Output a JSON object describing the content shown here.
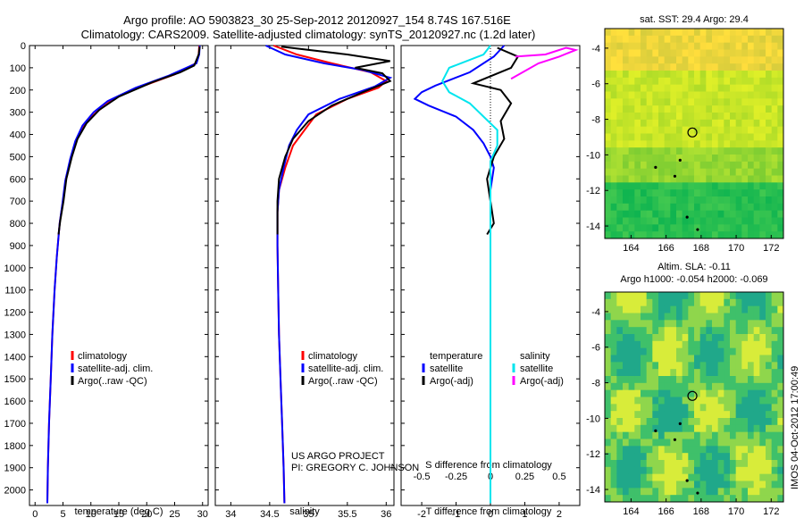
{
  "header": {
    "line1": "Argo profile: AO 5903823_30 25-Sep-2012 20120927_154 8.74S 167.516E",
    "line2": "Climatology: CARS2009. Satellite-adjusted climatology: synTS_20120927.nc (1.2d later)"
  },
  "credit": {
    "line1": "US ARGO PROJECT",
    "line2": "PI: GREGORY C. JOHNSON"
  },
  "side_stamp": "IMOS 04-Oct-2012 17:00:49",
  "colors": {
    "climatology": "#ff0000",
    "satellite": "#0000ff",
    "argo": "#000000",
    "salinity_satellite": "#00e5ee",
    "salinity_argo": "#ff00ff"
  },
  "chart_data": [
    {
      "type": "line",
      "panel": "temperature",
      "xlabel": "temperature (deg C)",
      "ylabel": "",
      "xlim": [
        -1,
        31
      ],
      "ylim": [
        2070,
        0
      ],
      "xticks": [
        0,
        5,
        10,
        15,
        20,
        25,
        30
      ],
      "yticks": [
        0,
        100,
        200,
        300,
        400,
        500,
        600,
        700,
        800,
        900,
        1000,
        1100,
        1200,
        1300,
        1400,
        1500,
        1600,
        1700,
        1800,
        1900,
        2000
      ],
      "legend": [
        "climatology",
        "satellite-adj. clim.",
        "Argo(..raw -QC)"
      ],
      "legend_position": "lower-center",
      "series": [
        {
          "name": "climatology",
          "color": "#ff0000",
          "points": [
            [
              29.4,
              0
            ],
            [
              29.3,
              40
            ],
            [
              28.8,
              80
            ],
            [
              25,
              130
            ],
            [
              19,
              185
            ],
            [
              14,
              240
            ],
            [
              11,
              300
            ],
            [
              9,
              350
            ],
            [
              7.5,
              420
            ],
            [
              6.5,
              500
            ],
            [
              5.5,
              600
            ],
            [
              5,
              700
            ],
            [
              4.4,
              800
            ],
            [
              3.9,
              950
            ],
            [
              3.5,
              1100
            ],
            [
              3.1,
              1300
            ],
            [
              2.8,
              1500
            ],
            [
              2.5,
              1700
            ],
            [
              2.3,
              1900
            ],
            [
              2.2,
              2060
            ]
          ]
        },
        {
          "name": "satellite-adj. clim.",
          "color": "#0000ff",
          "points": [
            [
              29.5,
              0
            ],
            [
              29.4,
              40
            ],
            [
              28.9,
              80
            ],
            [
              24,
              135
            ],
            [
              18,
              190
            ],
            [
              13,
              250
            ],
            [
              10.5,
              300
            ],
            [
              8.5,
              360
            ],
            [
              7.2,
              430
            ],
            [
              6.3,
              510
            ],
            [
              5.4,
              610
            ],
            [
              4.9,
              710
            ],
            [
              4.4,
              800
            ],
            [
              3.9,
              950
            ],
            [
              3.5,
              1100
            ],
            [
              3.1,
              1300
            ],
            [
              2.8,
              1500
            ],
            [
              2.5,
              1700
            ],
            [
              2.3,
              1900
            ],
            [
              2.2,
              2060
            ]
          ]
        },
        {
          "name": "Argo(..raw -QC)",
          "color": "#000000",
          "points": [
            [
              29.5,
              5
            ],
            [
              29.3,
              40
            ],
            [
              28.5,
              90
            ],
            [
              26,
              120
            ],
            [
              21,
              165
            ],
            [
              15,
              230
            ],
            [
              11.5,
              290
            ],
            [
              9.2,
              350
            ],
            [
              7.6,
              420
            ],
            [
              6.6,
              500
            ],
            [
              5.6,
              600
            ],
            [
              5.1,
              700
            ],
            [
              4.5,
              790
            ],
            [
              4.2,
              850
            ]
          ]
        }
      ]
    },
    {
      "type": "line",
      "panel": "salinity",
      "xlabel": "salinity",
      "ylabel": "",
      "xlim": [
        33.8,
        36.1
      ],
      "ylim": [
        2070,
        0
      ],
      "xticks": [
        34,
        34.5,
        35,
        35.5,
        36
      ],
      "legend": [
        "climatology",
        "satellite-adj. clim.",
        "Argo(..raw -QC)"
      ],
      "legend_position": "lower-center",
      "series": [
        {
          "name": "climatology",
          "color": "#ff0000",
          "points": [
            [
              34.55,
              0
            ],
            [
              34.85,
              40
            ],
            [
              35.3,
              80
            ],
            [
              35.8,
              120
            ],
            [
              36.0,
              160
            ],
            [
              35.9,
              190
            ],
            [
              35.5,
              240
            ],
            [
              35.1,
              310
            ],
            [
              34.95,
              380
            ],
            [
              34.8,
              450
            ],
            [
              34.7,
              550
            ],
            [
              34.62,
              650
            ],
            [
              34.6,
              750
            ],
            [
              34.6,
              900
            ],
            [
              34.61,
              1100
            ],
            [
              34.62,
              1300
            ],
            [
              34.64,
              1500
            ],
            [
              34.66,
              1700
            ],
            [
              34.68,
              1900
            ],
            [
              34.69,
              2060
            ]
          ]
        },
        {
          "name": "satellite-adj. clim.",
          "color": "#0000ff",
          "points": [
            [
              34.45,
              0
            ],
            [
              34.7,
              40
            ],
            [
              35.2,
              80
            ],
            [
              35.7,
              110
            ],
            [
              36.05,
              145
            ],
            [
              35.85,
              185
            ],
            [
              35.4,
              240
            ],
            [
              35.0,
              310
            ],
            [
              34.85,
              380
            ],
            [
              34.75,
              450
            ],
            [
              34.68,
              550
            ],
            [
              34.62,
              650
            ],
            [
              34.6,
              750
            ],
            [
              34.6,
              900
            ],
            [
              34.61,
              1100
            ],
            [
              34.62,
              1300
            ],
            [
              34.64,
              1500
            ],
            [
              34.66,
              1700
            ],
            [
              34.68,
              1900
            ],
            [
              34.69,
              2060
            ]
          ]
        },
        {
          "name": "Argo(..raw -QC)",
          "color": "#000000",
          "points": [
            [
              34.65,
              5
            ],
            [
              35.5,
              40
            ],
            [
              36.05,
              70
            ],
            [
              35.6,
              100
            ],
            [
              35.95,
              125
            ],
            [
              36.05,
              160
            ],
            [
              35.7,
              210
            ],
            [
              35.3,
              270
            ],
            [
              35.0,
              340
            ],
            [
              34.8,
              420
            ],
            [
              34.7,
              500
            ],
            [
              34.62,
              600
            ],
            [
              34.6,
              700
            ],
            [
              34.6,
              800
            ],
            [
              34.6,
              850
            ]
          ]
        }
      ]
    },
    {
      "type": "line",
      "panel": "difference",
      "xlabel": "T difference from climatology",
      "x2label": "S difference from climatology",
      "xlim": [
        -2.6,
        2.6
      ],
      "x2lim": [
        -0.65,
        0.65
      ],
      "ylim": [
        2070,
        0
      ],
      "xticks": [
        -2,
        -1,
        0,
        1,
        2
      ],
      "x2ticks": [
        "-0.5",
        "-0.25",
        "0",
        "0.25",
        "0.5"
      ],
      "legend_titles": [
        "temperature",
        "salinity"
      ],
      "legend": [
        "satellite",
        "Argo(-adj)",
        "satellite",
        "Argo(-adj)"
      ],
      "series": [
        {
          "name": "temperature satellite",
          "color": "#0000ff",
          "points": [
            [
              0.4,
              0
            ],
            [
              0.1,
              50
            ],
            [
              -0.6,
              120
            ],
            [
              -1.6,
              180
            ],
            [
              -2.0,
              210
            ],
            [
              -2.2,
              240
            ],
            [
              -1.8,
              270
            ],
            [
              -1.0,
              320
            ],
            [
              -0.5,
              380
            ],
            [
              -0.2,
              440
            ],
            [
              0.0,
              500
            ],
            [
              0.1,
              550
            ],
            [
              0.0,
              650
            ],
            [
              0.0,
              800
            ],
            [
              0.0,
              1000
            ],
            [
              0.0,
              1500
            ],
            [
              0.0,
              2060
            ]
          ]
        },
        {
          "name": "temperature Argo(-adj)",
          "color": "#000000",
          "points": [
            [
              0.2,
              10
            ],
            [
              0.8,
              50
            ],
            [
              0.6,
              100
            ],
            [
              -0.5,
              170
            ],
            [
              0.3,
              200
            ],
            [
              0.6,
              260
            ],
            [
              0.3,
              340
            ],
            [
              0.4,
              420
            ],
            [
              0.1,
              500
            ],
            [
              -0.1,
              600
            ],
            [
              0.0,
              700
            ],
            [
              0.1,
              800
            ],
            [
              -0.1,
              850
            ]
          ]
        },
        {
          "name": "salinity satellite",
          "color": "#00e5ee",
          "points": [
            [
              0.0,
              0
            ],
            [
              -0.05,
              40
            ],
            [
              -0.3,
              100
            ],
            [
              -0.35,
              160
            ],
            [
              -0.3,
              210
            ],
            [
              -0.15,
              260
            ],
            [
              -0.05,
              320
            ],
            [
              0.05,
              380
            ],
            [
              0.05,
              450
            ],
            [
              0.0,
              520
            ],
            [
              0.0,
              700
            ],
            [
              0.0,
              1000
            ],
            [
              0.0,
              1500
            ],
            [
              0.0,
              2060
            ]
          ]
        },
        {
          "name": "salinity Argo(-adj)",
          "color": "#ff00ff",
          "points": [
            [
              0.18,
              50
            ],
            [
              0.4,
              40
            ],
            [
              0.45,
              30
            ],
            [
              0.55,
              10
            ],
            [
              0.62,
              20
            ],
            [
              0.5,
              50
            ],
            [
              0.35,
              80
            ],
            [
              0.15,
              150
            ]
          ]
        }
      ]
    },
    {
      "type": "heatmap",
      "panel": "sea surface temperature map",
      "title": "sat. SST: 29.4 Argo: 29.4",
      "xlim": [
        162.5,
        172.7
      ],
      "ylim": [
        -14.7,
        -2.9
      ],
      "xticks": [
        164,
        166,
        168,
        170,
        172
      ],
      "yticks": [
        -4,
        -6,
        -8,
        -10,
        -12,
        -14
      ],
      "marker": {
        "lon": 167.5,
        "lat": -8.74
      }
    },
    {
      "type": "heatmap",
      "panel": "sea level anomaly map",
      "title": "Altim. SLA: -0.11",
      "subtitle": "Argo h1000: -0.054 h2000: -0.069",
      "xlim": [
        162.5,
        172.7
      ],
      "ylim": [
        -14.7,
        -2.9
      ],
      "xticks": [
        164,
        166,
        168,
        170,
        172
      ],
      "yticks": [
        -4,
        -6,
        -8,
        -10,
        -12,
        -14
      ],
      "marker": {
        "lon": 167.5,
        "lat": -8.74
      }
    }
  ]
}
